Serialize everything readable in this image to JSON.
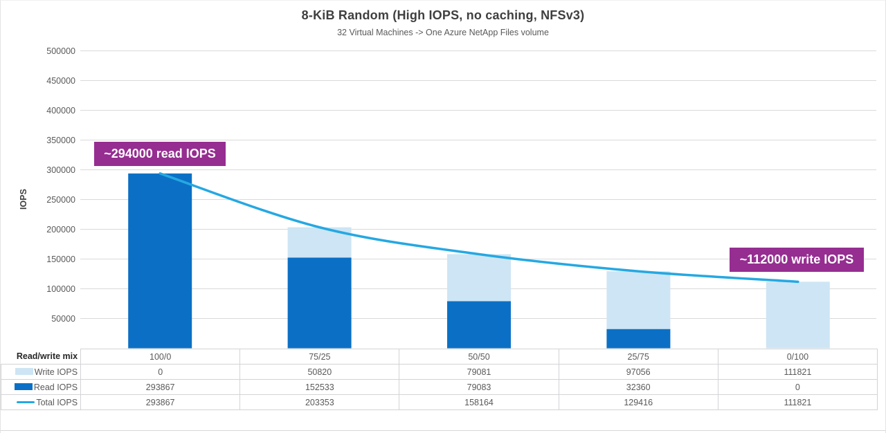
{
  "chart_data": {
    "type": "bar",
    "stacked": true,
    "title": "8-KiB Random (High IOPS, no caching, NFSv3)",
    "subtitle": "32 Virtual Machines -> One Azure NetApp Files volume",
    "xlabel": "Read/write mix",
    "ylabel": "IOPS",
    "ylim": [
      0,
      500000
    ],
    "y_ticks": [
      50000,
      100000,
      150000,
      200000,
      250000,
      300000,
      350000,
      400000,
      450000,
      500000
    ],
    "grid": true,
    "legend_position": "table-left",
    "categories": [
      "100/0",
      "75/25",
      "50/50",
      "25/75",
      "0/100"
    ],
    "series": [
      {
        "name": "Write IOPS",
        "type": "bar",
        "stack": "top",
        "color": "#cde5f4",
        "values": [
          0,
          50820,
          79081,
          97056,
          111821
        ]
      },
      {
        "name": "Read IOPS",
        "type": "bar",
        "stack": "bottom",
        "color": "#0b70c5",
        "values": [
          293867,
          152533,
          79083,
          32360,
          0
        ]
      },
      {
        "name": "Total IOPS",
        "type": "line",
        "color": "#25a8e2",
        "values": [
          293867,
          203353,
          158164,
          129416,
          111821
        ]
      }
    ],
    "annotations": [
      {
        "text": "~294000 read IOPS",
        "color": "#962d91"
      },
      {
        "text": "~112000 write IOPS",
        "color": "#962d91"
      }
    ],
    "colors": {
      "grid": "#d9d9d9",
      "axis_text": "#595959",
      "title_text": "#3f3f3f"
    }
  }
}
